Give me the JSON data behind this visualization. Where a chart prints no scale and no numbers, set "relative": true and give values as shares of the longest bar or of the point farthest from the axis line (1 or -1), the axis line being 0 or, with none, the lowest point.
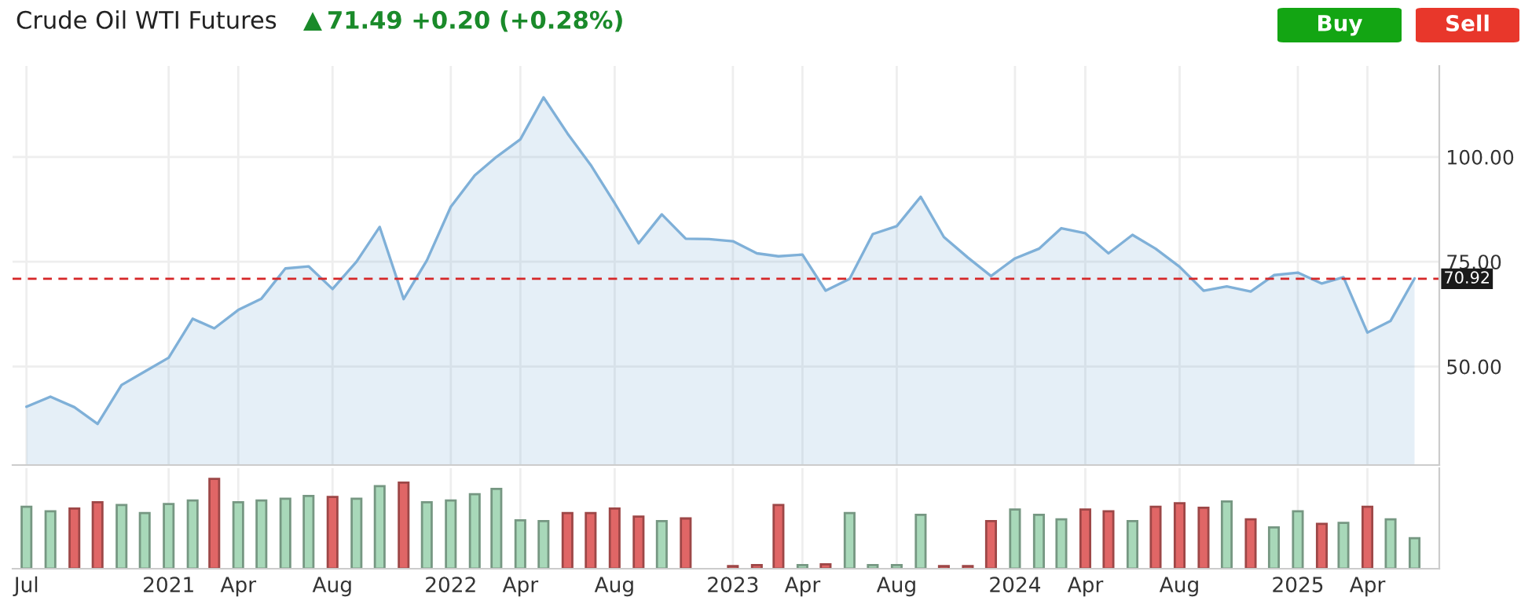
{
  "chart_data": [
    {
      "type": "area",
      "title": "Crude Oil WTI Futures",
      "subtitle": "71.49 +0.20 (+0.28%)",
      "annotations": [
        "Buy",
        "Sell"
      ],
      "x": [
        "2020-07",
        "2020-08",
        "2020-09",
        "2020-10",
        "2020-11",
        "2020-12",
        "2021-01",
        "2021-02",
        "2021-03",
        "2021-04",
        "2021-05",
        "2021-06",
        "2021-07",
        "2021-08",
        "2021-09",
        "2021-10",
        "2021-11",
        "2021-12",
        "2022-01",
        "2022-02",
        "2022-03",
        "2022-04",
        "2022-05",
        "2022-06",
        "2022-07",
        "2022-08",
        "2022-09",
        "2022-10",
        "2022-11",
        "2022-12",
        "2023-01",
        "2023-02",
        "2023-03",
        "2023-04",
        "2023-05",
        "2023-06",
        "2023-07",
        "2023-08",
        "2023-09",
        "2023-10",
        "2023-11",
        "2023-12",
        "2024-01",
        "2024-02",
        "2024-03",
        "2024-04",
        "2024-05",
        "2024-06",
        "2024-07",
        "2024-08",
        "2024-09",
        "2024-10",
        "2024-11",
        "2024-12",
        "2025-01",
        "2025-02",
        "2025-03",
        "2025-04",
        "2025-05",
        "2025-06"
      ],
      "series": [
        {
          "color": "#7fb0d8",
          "values": [
            40.4,
            42.8,
            40.3,
            36.3,
            45.6,
            48.8,
            52.1,
            61.4,
            59.1,
            63.5,
            66.2,
            73.4,
            73.9,
            68.5,
            75.0,
            83.3,
            66.1,
            75.3,
            88.1,
            95.6,
            100.0,
            104.2,
            114.2,
            105.6,
            98.1,
            89.0,
            79.4,
            86.3,
            80.5,
            80.4,
            79.9,
            77.0,
            76.3,
            76.7,
            68.1,
            70.9,
            81.6,
            83.5,
            90.5,
            80.9,
            76.0,
            71.6,
            75.8,
            78.1,
            83.0,
            81.8,
            77.0,
            81.4,
            78.1,
            73.8,
            68.1,
            69.1,
            67.9,
            71.8,
            72.4,
            69.8,
            71.3,
            58.1,
            60.9,
            71.0
          ]
        }
      ],
      "xlim": [
        "2020-06-13",
        "2025-07-03"
      ],
      "ylim": [
        26.5,
        121.7
      ],
      "yticks": [
        {
          "value": 50,
          "label": "50.00"
        },
        {
          "value": 75,
          "label": "75.00"
        },
        {
          "value": 100,
          "label": "100.00"
        }
      ],
      "ref_lines": [
        {
          "axis": "y",
          "value": 70.92,
          "label": "70.92",
          "color": "#d62728",
          "line_style": "dashed"
        }
      ],
      "grid": true,
      "tick_labels": "y"
    },
    {
      "type": "bar",
      "relative": true,
      "x": [
        "2020-07",
        "2020-08",
        "2020-09",
        "2020-10",
        "2020-11",
        "2020-12",
        "2021-01",
        "2021-02",
        "2021-03",
        "2021-04",
        "2021-05",
        "2021-06",
        "2021-07",
        "2021-08",
        "2021-09",
        "2021-10",
        "2021-11",
        "2021-12",
        "2022-01",
        "2022-02",
        "2022-03",
        "2022-04",
        "2022-05",
        "2022-06",
        "2022-07",
        "2022-08",
        "2022-09",
        "2022-10",
        "2022-11",
        "2022-12",
        "2023-01",
        "2023-02",
        "2023-03",
        "2023-04",
        "2023-05",
        "2023-06",
        "2023-07",
        "2023-08",
        "2023-09",
        "2023-10",
        "2023-11",
        "2023-12",
        "2024-01",
        "2024-02",
        "2024-03",
        "2024-04",
        "2024-05",
        "2024-06",
        "2024-07",
        "2024-08",
        "2024-09",
        "2024-10",
        "2024-11",
        "2024-12",
        "2025-01",
        "2025-02",
        "2025-03",
        "2025-04",
        "2025-05",
        "2025-06"
      ],
      "values": [
        0.69,
        0.64,
        0.67,
        0.74,
        0.71,
        0.62,
        0.72,
        0.76,
        1.0,
        0.74,
        0.76,
        0.78,
        0.81,
        0.8,
        0.78,
        0.92,
        0.96,
        0.74,
        0.76,
        0.83,
        0.89,
        0.54,
        0.53,
        0.62,
        0.62,
        0.67,
        0.58,
        0.53,
        0.56,
        0,
        0.03,
        0.04,
        0.71,
        0.04,
        0.05,
        0.62,
        0.04,
        0.04,
        0.6,
        0.03,
        0.03,
        0.53,
        0.66,
        0.6,
        0.55,
        0.66,
        0.64,
        0.53,
        0.69,
        0.73,
        0.68,
        0.75,
        0.55,
        0.46,
        0.64,
        0.5,
        0.51,
        0.69,
        0.55,
        0.34
      ],
      "colors": [
        "#a8d8b9",
        "#a8d8b9",
        "#e06666",
        "#e06666",
        "#a8d8b9",
        "#a8d8b9",
        "#a8d8b9",
        "#a8d8b9",
        "#e06666",
        "#a8d8b9",
        "#a8d8b9",
        "#a8d8b9",
        "#a8d8b9",
        "#e06666",
        "#a8d8b9",
        "#a8d8b9",
        "#e06666",
        "#a8d8b9",
        "#a8d8b9",
        "#a8d8b9",
        "#a8d8b9",
        "#a8d8b9",
        "#a8d8b9",
        "#e06666",
        "#e06666",
        "#e06666",
        "#e06666",
        "#a8d8b9",
        "#e06666",
        "#e06666",
        "#e06666",
        "#e06666",
        "#e06666",
        "#a8d8b9",
        "#e06666",
        "#a8d8b9",
        "#a8d8b9",
        "#a8d8b9",
        "#a8d8b9",
        "#e06666",
        "#e06666",
        "#e06666",
        "#a8d8b9",
        "#a8d8b9",
        "#a8d8b9",
        "#e06666",
        "#e06666",
        "#a8d8b9",
        "#e06666",
        "#e06666",
        "#e06666",
        "#a8d8b9",
        "#e06666",
        "#a8d8b9",
        "#a8d8b9",
        "#e06666",
        "#a8d8b9",
        "#e06666",
        "#a8d8b9",
        "#a8d8b9"
      ],
      "xlim": [
        "2020-06-13",
        "2025-07-03"
      ],
      "xticks": [
        {
          "value": "2020-07",
          "label": "Jul"
        },
        {
          "value": "2021-01",
          "label": "2021"
        },
        {
          "value": "2021-04",
          "label": "Apr"
        },
        {
          "value": "2021-08",
          "label": "Aug"
        },
        {
          "value": "2022-01",
          "label": "2022"
        },
        {
          "value": "2022-04",
          "label": "Apr"
        },
        {
          "value": "2022-08",
          "label": "Aug"
        },
        {
          "value": "2023-01",
          "label": "2023"
        },
        {
          "value": "2023-04",
          "label": "Apr"
        },
        {
          "value": "2023-08",
          "label": "Aug"
        },
        {
          "value": "2024-01",
          "label": "2024"
        },
        {
          "value": "2024-04",
          "label": "Apr"
        },
        {
          "value": "2024-08",
          "label": "Aug"
        },
        {
          "value": "2025-01",
          "label": "2025"
        },
        {
          "value": "2025-04",
          "label": "Apr"
        }
      ],
      "grid": "x",
      "tick_labels": "x"
    }
  ]
}
